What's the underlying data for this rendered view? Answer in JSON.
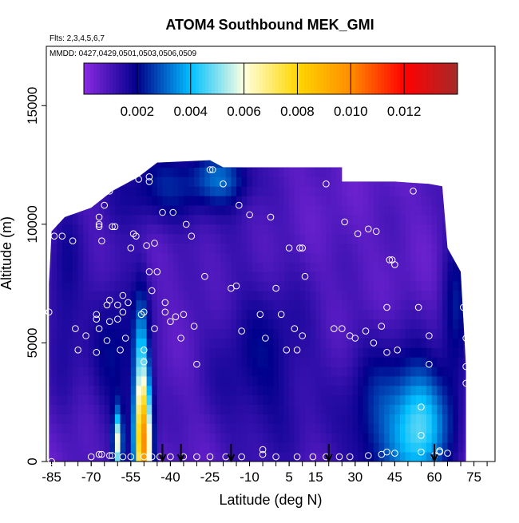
{
  "chart_data": {
    "type": "heatmap",
    "title": "ATOM4 Southbound MEK_GMI",
    "subtitle_flights": "Flts: 2,3,4,5,6,7",
    "subtitle_dates": "MMDD: 0427,0429,0501,0503,0506,0509",
    "xlabel": "Latitude (deg N)",
    "ylabel": "Altitude (m)",
    "xlim": [
      -87,
      83
    ],
    "ylim": [
      0,
      17500
    ],
    "x_ticks": [
      -85,
      -70,
      -55,
      -40,
      -25,
      -10,
      5,
      15,
      30,
      45,
      60,
      75
    ],
    "x_tick_labels": [
      "-85",
      "-70",
      "-55",
      "-40",
      "-25",
      "-10",
      "5",
      "15",
      "30",
      "45",
      "60",
      "75"
    ],
    "y_ticks": [
      0,
      5000,
      10000,
      15000
    ],
    "y_tick_labels": [
      "0",
      "5000",
      "10000",
      "15000"
    ],
    "colorbar": {
      "range": [
        0,
        0.014
      ],
      "ticks": [
        0.002,
        0.004,
        0.006,
        0.008,
        0.01,
        0.012
      ],
      "tick_labels": [
        "0.002",
        "0.004",
        "0.006",
        "0.008",
        "0.010",
        "0.012"
      ],
      "colors": [
        "#8a2be2",
        "#00008b",
        "#00bfff",
        "#ffffe0",
        "#ffd700",
        "#ff8c00",
        "#ff0000",
        "#a52a2a"
      ]
    },
    "background_value": 0.0007,
    "hotspots": [
      {
        "lat": -50,
        "alt": 500,
        "sx": 2.2,
        "sy": 1800,
        "value": 0.007
      },
      {
        "lat": -51,
        "alt": 3000,
        "sx": 2.0,
        "sy": 2500,
        "value": 0.0035
      },
      {
        "lat": -60,
        "alt": 800,
        "sx": 1.2,
        "sy": 900,
        "value": 0.0045
      },
      {
        "lat": 55,
        "alt": 1500,
        "sx": 7,
        "sy": 1800,
        "value": 0.0035
      },
      {
        "lat": 40,
        "alt": 1500,
        "sx": 10,
        "sy": 2500,
        "value": 0.0018
      },
      {
        "lat": -5,
        "alt": 4000,
        "sx": 15,
        "sy": 3000,
        "value": 0.0012
      },
      {
        "lat": -40,
        "alt": 11500,
        "sx": 15,
        "sy": 1200,
        "value": 0.0015
      },
      {
        "lat": -20,
        "alt": 12000,
        "sx": 8,
        "sy": 800,
        "value": 0.0018
      },
      {
        "lat": -60,
        "alt": 4500,
        "sx": 8,
        "sy": 3000,
        "value": 0.0013
      },
      {
        "lat": -80,
        "alt": 7000,
        "sx": 5,
        "sy": 3000,
        "value": 0.0011
      },
      {
        "lat": 68,
        "alt": 6000,
        "sx": 4,
        "sy": 3000,
        "value": 0.0014
      }
    ],
    "boundary": [
      [
        -86,
        0
      ],
      [
        -86,
        7500
      ],
      [
        -85,
        9700
      ],
      [
        -80,
        10300
      ],
      [
        -70,
        10700
      ],
      [
        -62,
        11400
      ],
      [
        -52,
        12000
      ],
      [
        -45,
        12600
      ],
      [
        -25,
        12700
      ],
      [
        -20,
        12400
      ],
      [
        -10,
        12400
      ],
      [
        25,
        12400
      ],
      [
        25,
        11800
      ],
      [
        45,
        11800
      ],
      [
        58,
        11700
      ],
      [
        63,
        11600
      ],
      [
        65,
        9000
      ],
      [
        70,
        8000
      ],
      [
        72,
        4000
      ],
      [
        72,
        0
      ]
    ],
    "sample_points": [
      [
        -86,
        6300
      ],
      [
        -84,
        9500
      ],
      [
        -81,
        9500
      ],
      [
        -77,
        9300
      ],
      [
        -76,
        5600
      ],
      [
        -75,
        4700
      ],
      [
        -72,
        5300
      ],
      [
        -68,
        6000
      ],
      [
        -68,
        6200
      ],
      [
        -68,
        4600
      ],
      [
        -67,
        5600
      ],
      [
        -67,
        10300
      ],
      [
        -67,
        9900
      ],
      [
        -67,
        10000
      ],
      [
        -66,
        9300
      ],
      [
        -65,
        10800
      ],
      [
        -64,
        6600
      ],
      [
        -64,
        5100
      ],
      [
        -63,
        6800
      ],
      [
        -63,
        5900
      ],
      [
        -63,
        11400
      ],
      [
        -62,
        9900
      ],
      [
        -61,
        9900
      ],
      [
        -60,
        6600
      ],
      [
        -60,
        6000
      ],
      [
        -59,
        4700
      ],
      [
        -58,
        6300
      ],
      [
        -58,
        7000
      ],
      [
        -57,
        5200
      ],
      [
        -56,
        6700
      ],
      [
        -55,
        9000
      ],
      [
        -54,
        9600
      ],
      [
        -53,
        9500
      ],
      [
        -52,
        11900
      ],
      [
        -51,
        6200
      ],
      [
        -50,
        4700
      ],
      [
        -50,
        4200
      ],
      [
        -50,
        6300
      ],
      [
        -49,
        9100
      ],
      [
        -48,
        8000
      ],
      [
        -48,
        11800
      ],
      [
        -48,
        12000
      ],
      [
        -47,
        7200
      ],
      [
        -46,
        5600
      ],
      [
        -46,
        9200
      ],
      [
        -45,
        8000
      ],
      [
        -43,
        10500
      ],
      [
        -42,
        6700
      ],
      [
        -42,
        6300
      ],
      [
        -40,
        5900
      ],
      [
        -39,
        10500
      ],
      [
        -38,
        6100
      ],
      [
        -36,
        5200
      ],
      [
        -35,
        6200
      ],
      [
        -34,
        10000
      ],
      [
        -32,
        9500
      ],
      [
        -31,
        5700
      ],
      [
        -30,
        4100
      ],
      [
        -27,
        7800
      ],
      [
        -25,
        12300
      ],
      [
        -24,
        12300
      ],
      [
        -20,
        11700
      ],
      [
        -17,
        7300
      ],
      [
        -15,
        7400
      ],
      [
        -14,
        10800
      ],
      [
        -13,
        5500
      ],
      [
        -10,
        10400
      ],
      [
        -6,
        6200
      ],
      [
        -4,
        5200
      ],
      [
        -2,
        10300
      ],
      [
        0,
        7300
      ],
      [
        2,
        6200
      ],
      [
        4,
        4700
      ],
      [
        5,
        9000
      ],
      [
        7,
        5600
      ],
      [
        8,
        4700
      ],
      [
        9,
        9000
      ],
      [
        10,
        9000
      ],
      [
        10,
        5300
      ],
      [
        11,
        7800
      ],
      [
        19,
        11700
      ],
      [
        22,
        5600
      ],
      [
        25,
        5600
      ],
      [
        26,
        10100
      ],
      [
        28,
        5300
      ],
      [
        30,
        5200
      ],
      [
        31,
        9600
      ],
      [
        34,
        5500
      ],
      [
        35,
        9800
      ],
      [
        37,
        5000
      ],
      [
        38,
        9700
      ],
      [
        40,
        5700
      ],
      [
        42,
        6500
      ],
      [
        42,
        4600
      ],
      [
        43,
        8500
      ],
      [
        44,
        8500
      ],
      [
        45,
        8300
      ],
      [
        46,
        4700
      ],
      [
        52,
        11400
      ],
      [
        54,
        6500
      ],
      [
        58,
        5300
      ],
      [
        58,
        4100
      ],
      [
        55,
        2300
      ],
      [
        55,
        1100
      ],
      [
        42,
        400
      ],
      [
        -85,
        0
      ],
      [
        -70,
        200
      ],
      [
        -67,
        300
      ],
      [
        -66,
        300
      ],
      [
        -63,
        250
      ],
      [
        -62,
        250
      ],
      [
        -58,
        200
      ],
      [
        -55,
        200
      ],
      [
        -50,
        200
      ],
      [
        -47,
        200
      ],
      [
        -44,
        200
      ],
      [
        -40,
        200
      ],
      [
        -35,
        200
      ],
      [
        -30,
        200
      ],
      [
        -25,
        200
      ],
      [
        -19,
        200
      ],
      [
        -13,
        200
      ],
      [
        -5,
        300
      ],
      [
        -5,
        500
      ],
      [
        0,
        200
      ],
      [
        8,
        200
      ],
      [
        14,
        200
      ],
      [
        19,
        200
      ],
      [
        24,
        200
      ],
      [
        28,
        200
      ],
      [
        35,
        250
      ],
      [
        40,
        300
      ],
      [
        45,
        350
      ],
      [
        55,
        400
      ],
      [
        60,
        250
      ],
      [
        62,
        400
      ],
      [
        62,
        450
      ],
      [
        65,
        350
      ],
      [
        72,
        4000
      ],
      [
        72,
        3300
      ],
      [
        72,
        5200
      ],
      [
        71,
        6500
      ]
    ],
    "flight_markers": [
      -43,
      -36,
      -17,
      20,
      60
    ]
  }
}
